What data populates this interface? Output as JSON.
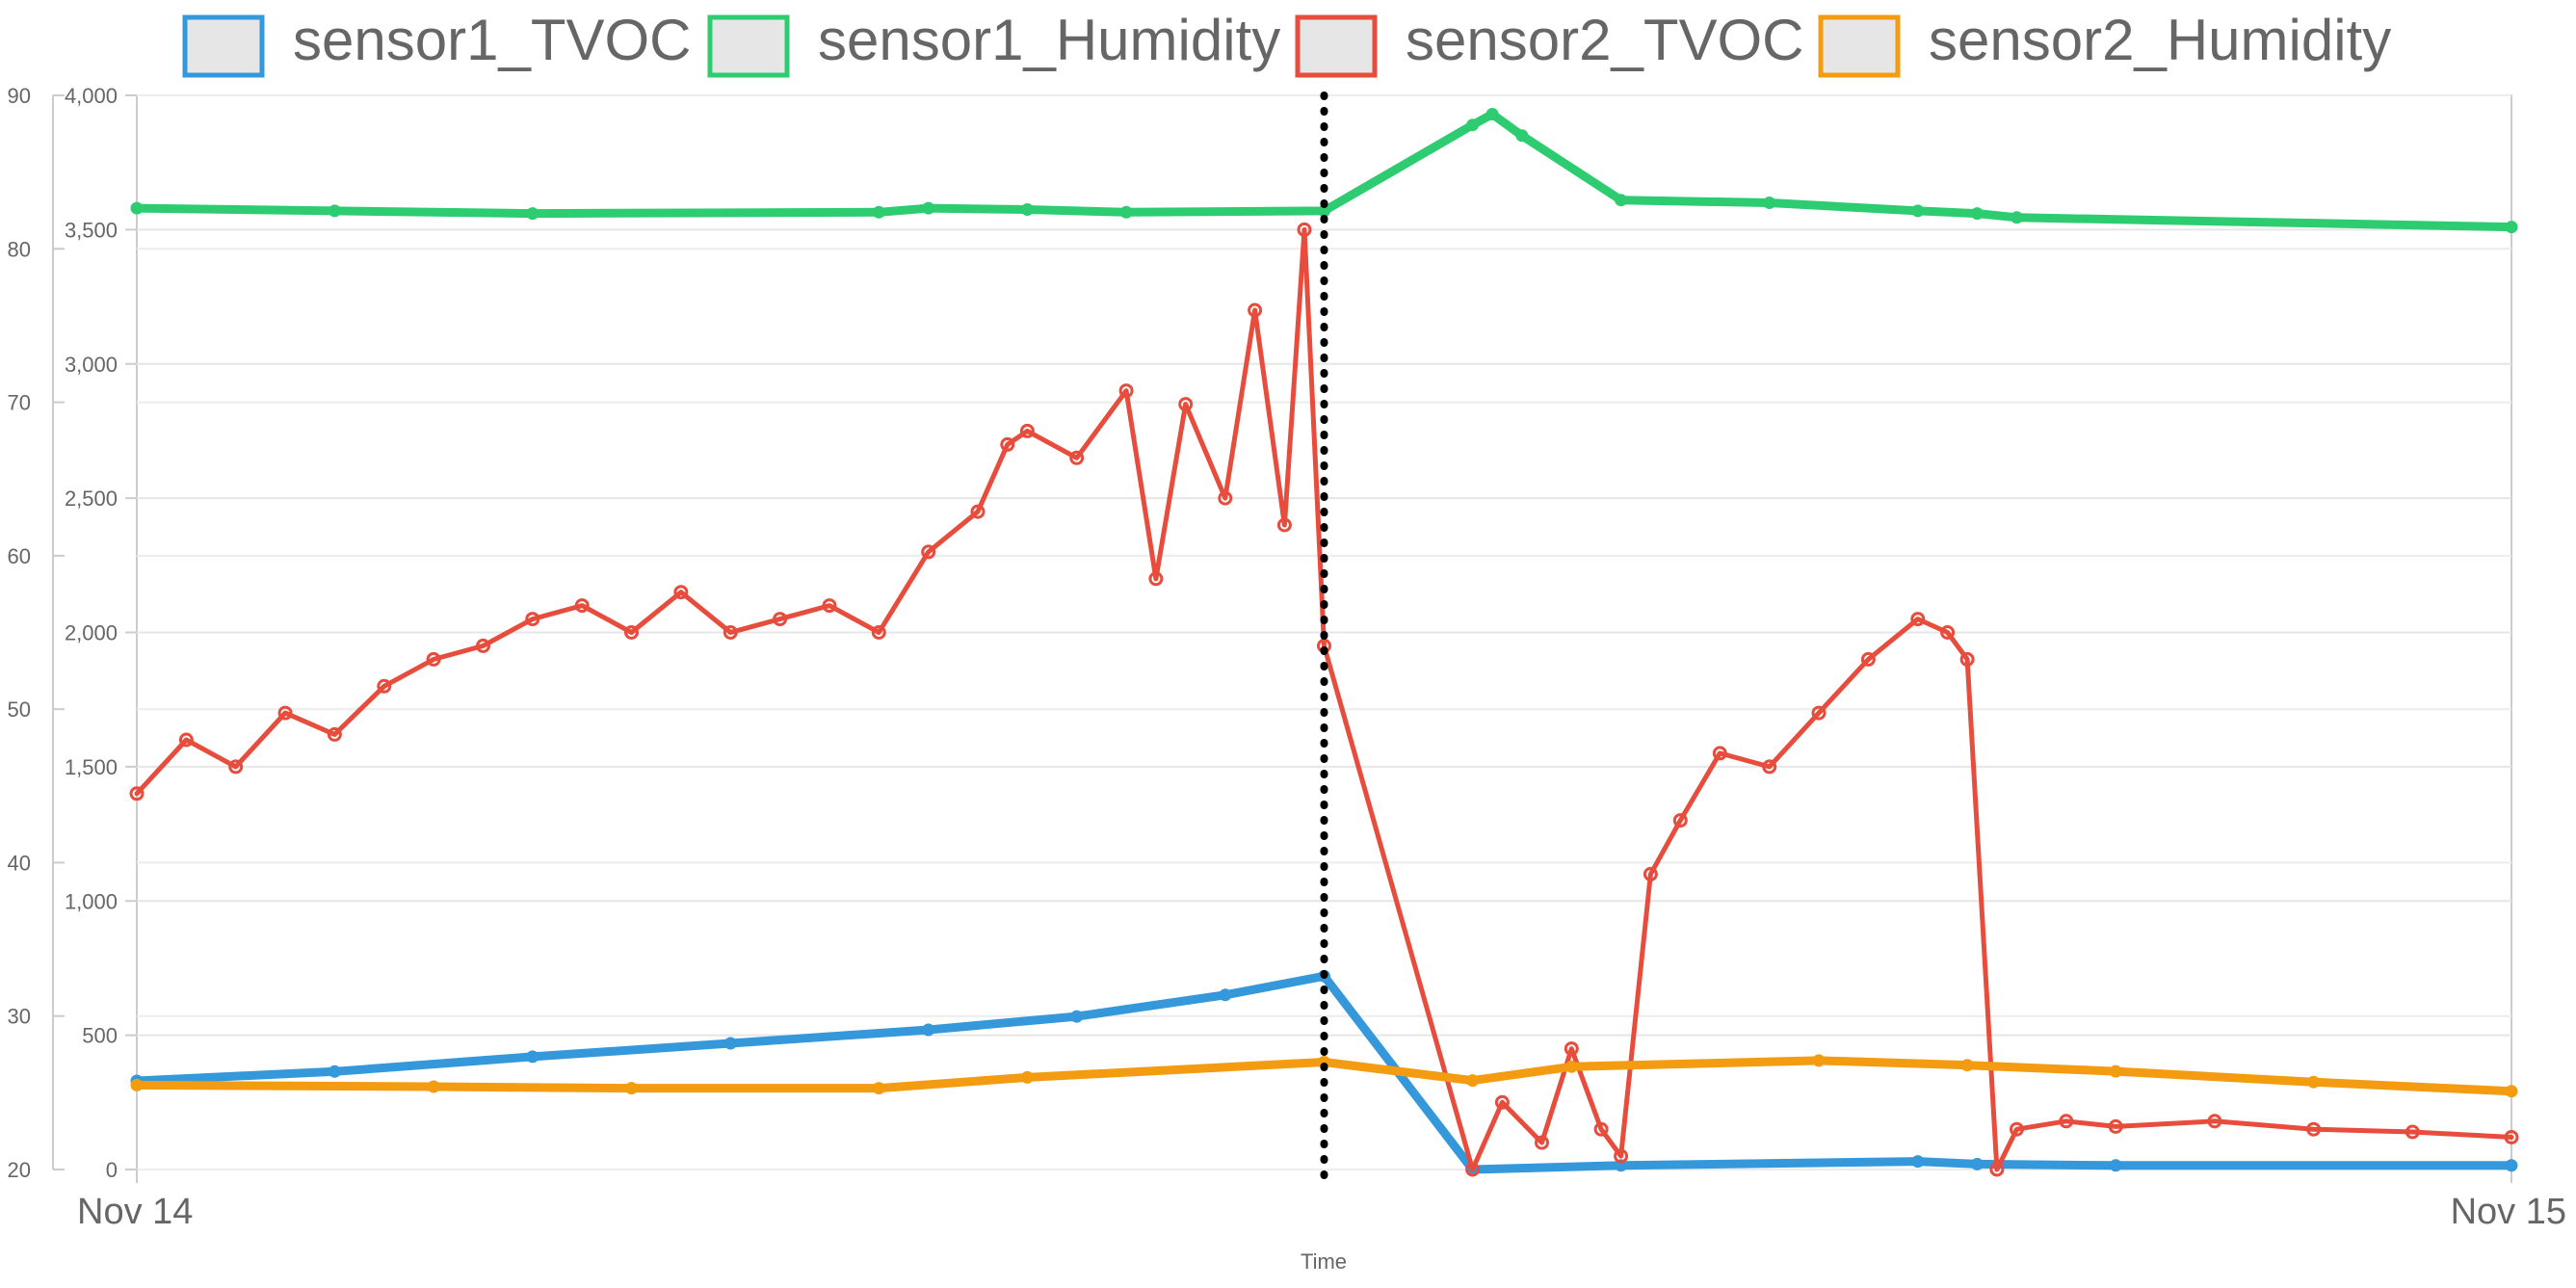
{
  "chart_data": {
    "type": "line",
    "xlabel": "Time",
    "x_ticks": [
      "Nov 14",
      "Nov 15"
    ],
    "x_range": [
      0,
      24
    ],
    "left_axis": {
      "range": [
        20,
        90
      ],
      "ticks": [
        "20",
        "30",
        "40",
        "50",
        "60",
        "70",
        "80",
        "90"
      ]
    },
    "right_axis": {
      "range": [
        0,
        4000
      ],
      "ticks": [
        "0",
        "500",
        "1,000",
        "1,500",
        "2,000",
        "2,500",
        "3,000",
        "3,500",
        "4,000"
      ]
    },
    "grid": true,
    "legend": "top",
    "vertical_marker": {
      "x": 12,
      "style": "dotted"
    },
    "series": [
      {
        "name": "sensor1_TVOC",
        "color": "#3498db",
        "axis": "right",
        "points": [
          [
            0,
            330
          ],
          [
            2,
            365
          ],
          [
            4,
            420
          ],
          [
            6,
            470
          ],
          [
            8,
            520
          ],
          [
            9.5,
            570
          ],
          [
            11,
            650
          ],
          [
            12,
            720
          ],
          [
            13.5,
            0
          ],
          [
            15,
            15
          ],
          [
            18,
            30
          ],
          [
            18.6,
            20
          ],
          [
            20,
            15
          ],
          [
            24,
            15
          ]
        ]
      },
      {
        "name": "sensor1_Humidity",
        "color": "#2ecc71",
        "axis": "right",
        "points": [
          [
            0,
            3580
          ],
          [
            2,
            3570
          ],
          [
            4,
            3560
          ],
          [
            7.5,
            3565
          ],
          [
            8,
            3580
          ],
          [
            9,
            3575
          ],
          [
            10,
            3565
          ],
          [
            12,
            3570
          ],
          [
            13.5,
            3890
          ],
          [
            13.7,
            3930
          ],
          [
            14,
            3850
          ],
          [
            15,
            3610
          ],
          [
            16.5,
            3600
          ],
          [
            18,
            3570
          ],
          [
            18.6,
            3560
          ],
          [
            19,
            3545
          ],
          [
            24,
            3510
          ]
        ]
      },
      {
        "name": "sensor2_TVOC",
        "color": "#e74c3c",
        "axis": "right",
        "points": [
          [
            0,
            1400
          ],
          [
            0.5,
            1600
          ],
          [
            1,
            1500
          ],
          [
            1.5,
            1700
          ],
          [
            2,
            1620
          ],
          [
            2.5,
            1800
          ],
          [
            3,
            1900
          ],
          [
            3.5,
            1950
          ],
          [
            4,
            2050
          ],
          [
            4.5,
            2100
          ],
          [
            5,
            2000
          ],
          [
            5.5,
            2150
          ],
          [
            6,
            2000
          ],
          [
            6.5,
            2050
          ],
          [
            7,
            2100
          ],
          [
            7.5,
            2000
          ],
          [
            8,
            2300
          ],
          [
            8.5,
            2450
          ],
          [
            8.8,
            2700
          ],
          [
            9,
            2750
          ],
          [
            9.5,
            2650
          ],
          [
            10,
            2900
          ],
          [
            10.3,
            2200
          ],
          [
            10.6,
            2850
          ],
          [
            11,
            2500
          ],
          [
            11.3,
            3200
          ],
          [
            11.6,
            2400
          ],
          [
            11.8,
            3500
          ],
          [
            12,
            1950
          ],
          [
            13.5,
            0
          ],
          [
            13.8,
            250
          ],
          [
            14.2,
            100
          ],
          [
            14.5,
            450
          ],
          [
            14.8,
            150
          ],
          [
            15,
            50
          ],
          [
            15.3,
            1100
          ],
          [
            15.6,
            1300
          ],
          [
            16,
            1550
          ],
          [
            16.5,
            1500
          ],
          [
            17,
            1700
          ],
          [
            17.5,
            1900
          ],
          [
            18,
            2050
          ],
          [
            18.3,
            2000
          ],
          [
            18.5,
            1900
          ],
          [
            18.8,
            0
          ],
          [
            19,
            150
          ],
          [
            19.5,
            180
          ],
          [
            20,
            160
          ],
          [
            21,
            180
          ],
          [
            22,
            150
          ],
          [
            23,
            140
          ],
          [
            24,
            120
          ]
        ]
      },
      {
        "name": "sensor2_Humidity",
        "color": "#f39c12",
        "axis": "left",
        "points": [
          [
            0,
            25.5
          ],
          [
            3,
            25.4
          ],
          [
            5,
            25.3
          ],
          [
            7.5,
            25.3
          ],
          [
            9,
            26.0
          ],
          [
            12,
            27.0
          ],
          [
            13.5,
            25.8
          ],
          [
            14.5,
            26.7
          ],
          [
            17,
            27.1
          ],
          [
            18.5,
            26.8
          ],
          [
            20,
            26.4
          ],
          [
            22,
            25.7
          ],
          [
            24,
            25.1
          ]
        ]
      }
    ]
  }
}
